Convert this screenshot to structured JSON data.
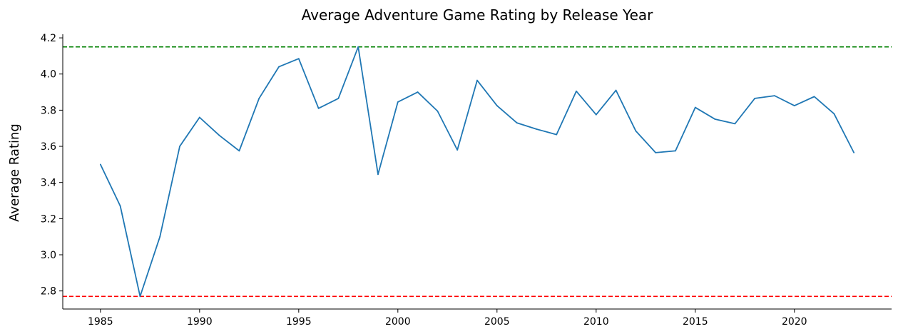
{
  "chart_data": {
    "type": "line",
    "title": "Average Adventure Game Rating by Release Year",
    "xlabel": "",
    "ylabel": "Average Rating",
    "xlim": [
      1983.1,
      2024.9
    ],
    "ylim": [
      2.7,
      4.22
    ],
    "xticks": [
      1985,
      1990,
      1995,
      2000,
      2005,
      2010,
      2015,
      2020
    ],
    "yticks": [
      "2.8",
      "3.0",
      "3.2",
      "3.4",
      "3.6",
      "3.8",
      "4.0",
      "4.2"
    ],
    "grid": false,
    "series": [
      {
        "color": "#1f77b4",
        "x": [
          1985,
          1986,
          1987,
          1988,
          1989,
          1990,
          1991,
          1992,
          1993,
          1994,
          1995,
          1996,
          1997,
          1998,
          1999,
          2000,
          2001,
          2002,
          2003,
          2004,
          2005,
          2006,
          2007,
          2008,
          2009,
          2010,
          2011,
          2012,
          2013,
          2014,
          2015,
          2016,
          2017,
          2018,
          2019,
          2020,
          2021,
          2022,
          2023
        ],
        "y": [
          3.5,
          3.27,
          2.77,
          3.1,
          3.6,
          3.76,
          3.66,
          3.575,
          3.865,
          4.04,
          4.085,
          3.81,
          3.865,
          4.15,
          3.445,
          3.845,
          3.9,
          3.795,
          3.58,
          3.965,
          3.825,
          3.73,
          3.695,
          3.665,
          3.905,
          3.775,
          3.91,
          3.685,
          3.565,
          3.575,
          3.815,
          3.75,
          3.725,
          3.865,
          3.88,
          3.825,
          3.875,
          3.78,
          3.565
        ]
      }
    ],
    "reference_lines": [
      {
        "y": 4.15,
        "color": "#008000",
        "style": "dashed"
      },
      {
        "y": 2.77,
        "color": "#ff0000",
        "style": "dashed"
      }
    ]
  }
}
